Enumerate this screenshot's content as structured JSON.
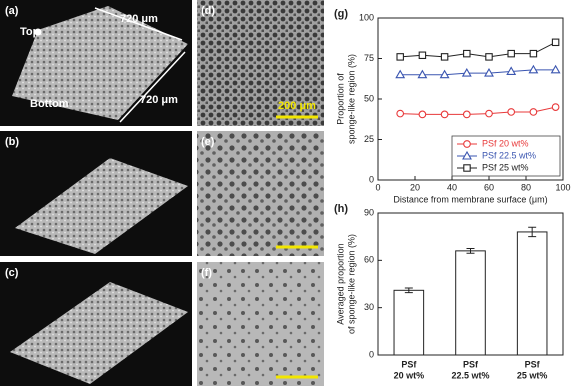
{
  "image_panels": [
    {
      "label": "(a)",
      "annotations": [
        "720 μm",
        "720 μm",
        "Top",
        "Bottom"
      ]
    },
    {
      "label": "(b)"
    },
    {
      "label": "(c)"
    },
    {
      "label": "(d)",
      "annotations": [
        "200 μm"
      ]
    },
    {
      "label": "(e)"
    },
    {
      "label": "(f)"
    }
  ],
  "chart_data": [
    {
      "type": "line",
      "panel_label": "(g)",
      "xlabel": "Distance from membrane surface (μm)",
      "ylabel": [
        "Proportion of",
        "sponge-like region (%)"
      ],
      "x": [
        12,
        24,
        36,
        48,
        60,
        72,
        84,
        96
      ],
      "series": [
        {
          "name": "PSf 20 wt%",
          "color": "#e8393a",
          "marker": "circle",
          "values": [
            41,
            40.5,
            40.5,
            40.5,
            41,
            42,
            42,
            45
          ]
        },
        {
          "name": "PSf 22.5 wt%",
          "color": "#3a55b0",
          "marker": "triangle",
          "values": [
            65,
            65,
            65,
            66,
            66,
            67,
            68,
            68
          ]
        },
        {
          "name": "PSf 25 wt%",
          "color": "#222222",
          "marker": "square",
          "values": [
            76,
            77,
            76,
            78,
            76,
            78,
            78,
            85
          ]
        }
      ],
      "xlim": [
        0,
        100
      ],
      "xticks": [
        0,
        20,
        40,
        60,
        80,
        100
      ],
      "ylim": [
        0,
        100
      ],
      "yticks": [
        0,
        25,
        50,
        75,
        100
      ],
      "legend": "lower right"
    },
    {
      "type": "bar",
      "panel_label": "(h)",
      "ylabel": [
        "Averaged proportion",
        "of sponge-like region (%)"
      ],
      "categories": [
        [
          "PSf",
          "20 wt%"
        ],
        [
          "PSf",
          "22.5 wt%"
        ],
        [
          "PSf",
          "25 wt%"
        ]
      ],
      "values": [
        41,
        66,
        78
      ],
      "errors": [
        1.5,
        1.5,
        3
      ],
      "color": "#ffffff",
      "ylim": [
        0,
        90
      ],
      "yticks": [
        0,
        30,
        60,
        90
      ]
    }
  ]
}
